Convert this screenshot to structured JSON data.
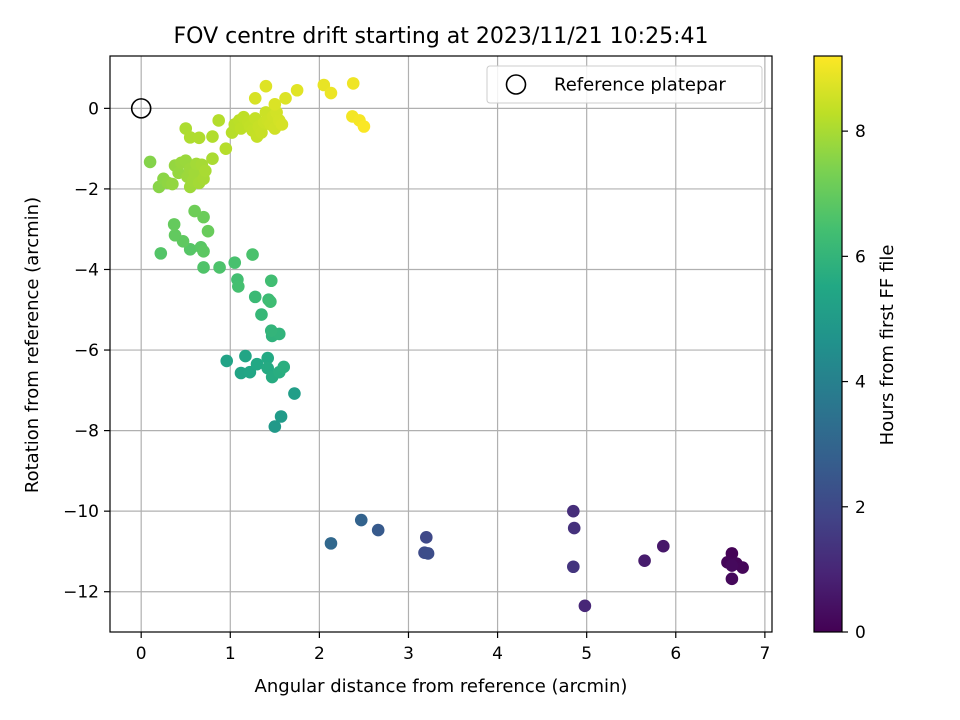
{
  "chart_data": {
    "type": "scatter",
    "title": "FOV centre drift starting at 2023/11/21 10:25:41",
    "xlabel": "Angular distance from reference (arcmin)",
    "ylabel": "Rotation from reference (arcmin)",
    "xlim": [
      -0.35,
      7.08
    ],
    "ylim": [
      -13.0,
      1.3
    ],
    "x_ticks": [
      0,
      1,
      2,
      3,
      4,
      5,
      6,
      7
    ],
    "y_ticks": [
      0,
      -2,
      -4,
      -6,
      -8,
      -10,
      -12
    ],
    "grid": true,
    "legend": {
      "position": "top-right",
      "entries": [
        "Reference platepar"
      ]
    },
    "reference_point": {
      "x": 0,
      "y": 0
    },
    "colorbar": {
      "label": "Hours from first FF file",
      "colormap": "viridis",
      "range": [
        0,
        9.2
      ],
      "ticks": [
        0,
        2,
        4,
        6,
        8
      ]
    },
    "series": [
      {
        "points": [
          {
            "x": 6.63,
            "y": -11.05,
            "c": 0.05
          },
          {
            "x": 6.58,
            "y": -11.27,
            "c": 0.1
          },
          {
            "x": 6.68,
            "y": -11.3,
            "c": 0.12
          },
          {
            "x": 6.75,
            "y": -11.4,
            "c": 0.15
          },
          {
            "x": 6.63,
            "y": -11.68,
            "c": 0.2
          },
          {
            "x": 6.63,
            "y": -11.35,
            "c": 0.22
          },
          {
            "x": 5.86,
            "y": -10.87,
            "c": 0.6
          },
          {
            "x": 5.65,
            "y": -11.23,
            "c": 0.7
          },
          {
            "x": 4.98,
            "y": -12.35,
            "c": 1.0
          },
          {
            "x": 4.85,
            "y": -10.0,
            "c": 1.2
          },
          {
            "x": 4.86,
            "y": -10.42,
            "c": 1.3
          },
          {
            "x": 4.85,
            "y": -11.38,
            "c": 1.4
          },
          {
            "x": 3.2,
            "y": -10.65,
            "c": 2.0
          },
          {
            "x": 3.18,
            "y": -11.03,
            "c": 2.1
          },
          {
            "x": 3.22,
            "y": -11.05,
            "c": 2.15
          },
          {
            "x": 2.66,
            "y": -10.47,
            "c": 2.6
          },
          {
            "x": 2.47,
            "y": -10.22,
            "c": 2.9
          },
          {
            "x": 2.13,
            "y": -10.8,
            "c": 3.1
          },
          {
            "x": 1.5,
            "y": -7.9,
            "c": 4.9
          },
          {
            "x": 1.57,
            "y": -7.65,
            "c": 5.0
          },
          {
            "x": 1.72,
            "y": -7.08,
            "c": 5.1
          },
          {
            "x": 0.96,
            "y": -6.27,
            "c": 5.3
          },
          {
            "x": 1.12,
            "y": -6.57,
            "c": 5.35
          },
          {
            "x": 1.17,
            "y": -6.15,
            "c": 5.4
          },
          {
            "x": 1.22,
            "y": -6.55,
            "c": 5.45
          },
          {
            "x": 1.3,
            "y": -6.35,
            "c": 5.5
          },
          {
            "x": 1.42,
            "y": -6.2,
            "c": 5.55
          },
          {
            "x": 1.42,
            "y": -6.45,
            "c": 5.6
          },
          {
            "x": 1.47,
            "y": -6.67,
            "c": 5.65
          },
          {
            "x": 1.55,
            "y": -6.55,
            "c": 5.7
          },
          {
            "x": 1.6,
            "y": -6.42,
            "c": 5.75
          },
          {
            "x": 1.47,
            "y": -5.65,
            "c": 5.9
          },
          {
            "x": 1.55,
            "y": -5.6,
            "c": 5.95
          },
          {
            "x": 1.46,
            "y": -5.52,
            "c": 6.0
          },
          {
            "x": 1.35,
            "y": -5.12,
            "c": 6.1
          },
          {
            "x": 1.28,
            "y": -4.68,
            "c": 6.2
          },
          {
            "x": 1.43,
            "y": -4.75,
            "c": 6.25
          },
          {
            "x": 1.45,
            "y": -4.8,
            "c": 6.3
          },
          {
            "x": 1.46,
            "y": -4.28,
            "c": 6.35
          },
          {
            "x": 1.08,
            "y": -4.25,
            "c": 6.4
          },
          {
            "x": 1.09,
            "y": -4.42,
            "c": 6.45
          },
          {
            "x": 1.05,
            "y": -3.83,
            "c": 6.5
          },
          {
            "x": 1.25,
            "y": -3.63,
            "c": 6.55
          },
          {
            "x": 0.88,
            "y": -3.95,
            "c": 6.6
          },
          {
            "x": 0.7,
            "y": -3.95,
            "c": 6.65
          },
          {
            "x": 0.22,
            "y": -3.6,
            "c": 6.7
          },
          {
            "x": 0.55,
            "y": -3.5,
            "c": 6.75
          },
          {
            "x": 0.67,
            "y": -3.45,
            "c": 6.8
          },
          {
            "x": 0.7,
            "y": -3.55,
            "c": 6.85
          },
          {
            "x": 0.47,
            "y": -3.3,
            "c": 6.9
          },
          {
            "x": 0.38,
            "y": -3.15,
            "c": 6.95
          },
          {
            "x": 0.37,
            "y": -2.88,
            "c": 7.0
          },
          {
            "x": 0.75,
            "y": -3.05,
            "c": 7.05
          },
          {
            "x": 0.7,
            "y": -2.7,
            "c": 7.1
          },
          {
            "x": 0.6,
            "y": -2.55,
            "c": 7.15
          },
          {
            "x": 0.1,
            "y": -1.33,
            "c": 7.5
          },
          {
            "x": 0.2,
            "y": -1.95,
            "c": 7.55
          },
          {
            "x": 0.25,
            "y": -1.75,
            "c": 7.6
          },
          {
            "x": 0.3,
            "y": -1.85,
            "c": 7.65
          },
          {
            "x": 0.35,
            "y": -1.88,
            "c": 7.7
          },
          {
            "x": 0.38,
            "y": -1.42,
            "c": 7.72
          },
          {
            "x": 0.42,
            "y": -1.6,
            "c": 7.75
          },
          {
            "x": 0.45,
            "y": -1.35,
            "c": 7.78
          },
          {
            "x": 0.5,
            "y": -1.3,
            "c": 7.8
          },
          {
            "x": 0.52,
            "y": -1.7,
            "c": 7.82
          },
          {
            "x": 0.55,
            "y": -1.5,
            "c": 7.84
          },
          {
            "x": 0.55,
            "y": -1.95,
            "c": 7.86
          },
          {
            "x": 0.58,
            "y": -1.8,
            "c": 7.88
          },
          {
            "x": 0.6,
            "y": -1.6,
            "c": 7.9
          },
          {
            "x": 0.62,
            "y": -1.38,
            "c": 7.92
          },
          {
            "x": 0.65,
            "y": -1.85,
            "c": 7.94
          },
          {
            "x": 0.68,
            "y": -1.4,
            "c": 7.96
          },
          {
            "x": 0.7,
            "y": -1.75,
            "c": 7.98
          },
          {
            "x": 0.72,
            "y": -1.55,
            "c": 8.0
          },
          {
            "x": 0.8,
            "y": -1.25,
            "c": 8.02
          },
          {
            "x": 0.5,
            "y": -0.5,
            "c": 8.05
          },
          {
            "x": 0.55,
            "y": -0.72,
            "c": 8.08
          },
          {
            "x": 0.65,
            "y": -0.73,
            "c": 8.1
          },
          {
            "x": 0.8,
            "y": -0.7,
            "c": 8.12
          },
          {
            "x": 0.87,
            "y": -0.3,
            "c": 8.15
          },
          {
            "x": 0.95,
            "y": -1.0,
            "c": 8.18
          },
          {
            "x": 1.02,
            "y": -0.6,
            "c": 8.2
          },
          {
            "x": 1.05,
            "y": -0.4,
            "c": 8.22
          },
          {
            "x": 1.1,
            "y": -0.3,
            "c": 8.25
          },
          {
            "x": 1.12,
            "y": -0.5,
            "c": 8.28
          },
          {
            "x": 1.15,
            "y": -0.22,
            "c": 8.3
          },
          {
            "x": 1.2,
            "y": -0.35,
            "c": 8.32
          },
          {
            "x": 1.22,
            "y": -0.45,
            "c": 8.34
          },
          {
            "x": 1.25,
            "y": -0.55,
            "c": 8.36
          },
          {
            "x": 1.28,
            "y": -0.25,
            "c": 8.38
          },
          {
            "x": 1.3,
            "y": -0.7,
            "c": 8.4
          },
          {
            "x": 1.32,
            "y": -0.45,
            "c": 8.42
          },
          {
            "x": 1.35,
            "y": -0.6,
            "c": 8.44
          },
          {
            "x": 1.38,
            "y": -0.35,
            "c": 8.46
          },
          {
            "x": 1.4,
            "y": -0.1,
            "c": 8.48
          },
          {
            "x": 1.42,
            "y": -0.3,
            "c": 8.5
          },
          {
            "x": 1.45,
            "y": -0.4,
            "c": 8.52
          },
          {
            "x": 1.48,
            "y": -0.2,
            "c": 8.54
          },
          {
            "x": 1.5,
            "y": -0.5,
            "c": 8.56
          },
          {
            "x": 1.52,
            "y": -0.1,
            "c": 8.58
          },
          {
            "x": 1.55,
            "y": -0.3,
            "c": 8.6
          },
          {
            "x": 1.58,
            "y": -0.4,
            "c": 8.62
          },
          {
            "x": 1.28,
            "y": 0.25,
            "c": 8.65
          },
          {
            "x": 1.5,
            "y": 0.1,
            "c": 8.7
          },
          {
            "x": 1.62,
            "y": 0.25,
            "c": 8.72
          },
          {
            "x": 1.4,
            "y": 0.55,
            "c": 8.75
          },
          {
            "x": 1.75,
            "y": 0.45,
            "c": 8.8
          },
          {
            "x": 2.05,
            "y": 0.58,
            "c": 8.9
          },
          {
            "x": 2.13,
            "y": 0.38,
            "c": 8.95
          },
          {
            "x": 2.38,
            "y": 0.62,
            "c": 9.0
          },
          {
            "x": 2.37,
            "y": -0.2,
            "c": 9.05
          },
          {
            "x": 2.45,
            "y": -0.3,
            "c": 9.1
          },
          {
            "x": 2.5,
            "y": -0.45,
            "c": 9.15
          }
        ]
      }
    ]
  }
}
